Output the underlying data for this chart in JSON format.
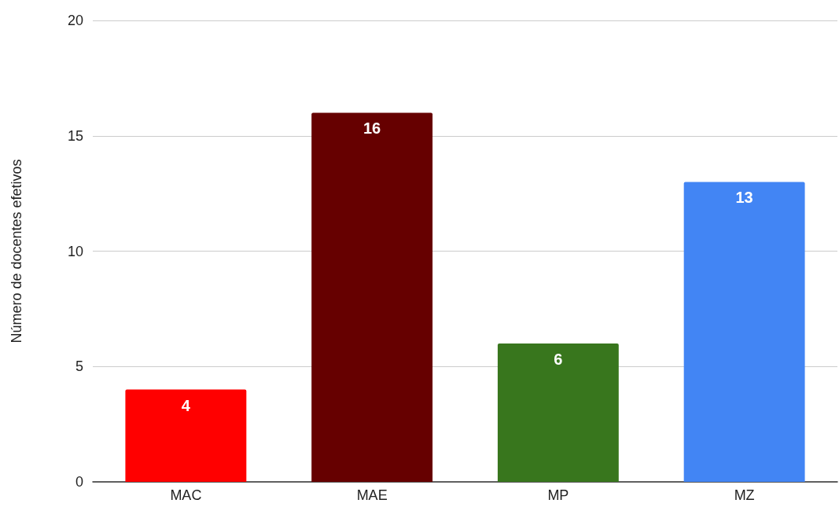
{
  "chart_data": {
    "type": "bar",
    "ylabel": "Número de docentes efetivos",
    "categories": [
      "MAC",
      "MAE",
      "MP",
      "MZ"
    ],
    "values": [
      4,
      16,
      6,
      13
    ],
    "colors": [
      "#ff0000",
      "#660000",
      "#38761d",
      "#4285f4"
    ],
    "ylim": [
      0,
      20
    ],
    "yticks": [
      0,
      5,
      10,
      15,
      20
    ],
    "grid": "y",
    "data_labels": true
  }
}
